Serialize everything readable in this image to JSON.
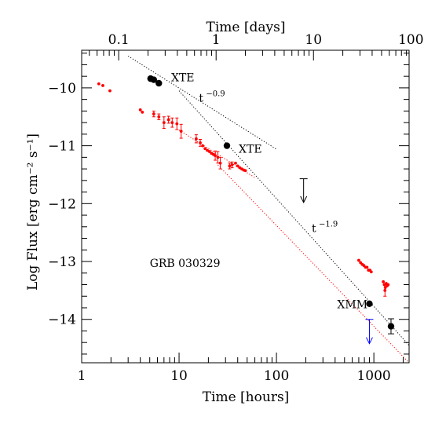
{
  "chart_data": {
    "type": "scatter",
    "title": "",
    "xlabel": "Time [hours]",
    "x2label": "Time [days]",
    "ylabel": "Log Flux [erg cm⁻² s⁻¹]",
    "xscale": "log",
    "xlim": [
      1,
      2300
    ],
    "ylim": [
      -14.75,
      -9.35
    ],
    "x_ticks": [
      1,
      10,
      100,
      1000
    ],
    "x_tick_labels": [
      "1",
      "10",
      "100",
      "1000"
    ],
    "x2_ticks_days": [
      0.1,
      1,
      10,
      100
    ],
    "x2_tick_labels": [
      "0.1",
      "1",
      "10",
      "100"
    ],
    "y_ticks": [
      -10,
      -11,
      -12,
      -13,
      -14
    ],
    "y_tick_labels": [
      "−10",
      "−11",
      "−12",
      "−13",
      "−14"
    ],
    "grid": false,
    "series": [
      {
        "name": "",
        "color": "#ff0000",
        "marker": "small-dot",
        "points": [
          {
            "x": 1.5,
            "y": -9.93
          },
          {
            "x": 1.65,
            "y": -9.96
          },
          {
            "x": 1.95,
            "y": -10.05
          },
          {
            "x": 4.0,
            "y": -10.38
          },
          {
            "x": 4.2,
            "y": -10.42
          },
          {
            "x": 5.5,
            "y": -10.45,
            "err": 0.05
          },
          {
            "x": 6.2,
            "y": -10.5,
            "err": 0.05
          },
          {
            "x": 7.0,
            "y": -10.6,
            "err": 0.1
          },
          {
            "x": 7.8,
            "y": -10.55,
            "err": 0.06
          },
          {
            "x": 8.5,
            "y": -10.6,
            "err": 0.08
          },
          {
            "x": 9.5,
            "y": -10.62,
            "err": 0.1
          },
          {
            "x": 10.5,
            "y": -10.75,
            "err": 0.12
          },
          {
            "x": 15.0,
            "y": -10.88,
            "err": 0.07
          },
          {
            "x": 16.5,
            "y": -10.95,
            "err": 0.06
          },
          {
            "x": 17.5,
            "y": -11.0
          },
          {
            "x": 18.5,
            "y": -11.05
          },
          {
            "x": 19.5,
            "y": -11.08
          },
          {
            "x": 20.5,
            "y": -11.1
          },
          {
            "x": 21.5,
            "y": -11.13
          },
          {
            "x": 22.5,
            "y": -11.15
          },
          {
            "x": 23.5,
            "y": -11.17,
            "err": 0.08
          },
          {
            "x": 25.0,
            "y": -11.2,
            "err": 0.1
          },
          {
            "x": 26.5,
            "y": -11.3,
            "err": 0.1
          },
          {
            "x": 33.0,
            "y": -11.35,
            "err": 0.05
          },
          {
            "x": 35.0,
            "y": -11.33,
            "err": 0.05
          },
          {
            "x": 38.0,
            "y": -11.3
          },
          {
            "x": 40.0,
            "y": -11.35
          },
          {
            "x": 42.0,
            "y": -11.38
          },
          {
            "x": 44.0,
            "y": -11.4
          },
          {
            "x": 46.0,
            "y": -11.42
          },
          {
            "x": 48.0,
            "y": -11.43
          },
          {
            "x": 700,
            "y": -12.98
          },
          {
            "x": 730,
            "y": -13.02
          },
          {
            "x": 760,
            "y": -13.05
          },
          {
            "x": 790,
            "y": -13.07
          },
          {
            "x": 820,
            "y": -13.1
          },
          {
            "x": 850,
            "y": -13.1
          },
          {
            "x": 880,
            "y": -13.15
          },
          {
            "x": 910,
            "y": -13.15
          },
          {
            "x": 940,
            "y": -13.18
          },
          {
            "x": 1250,
            "y": -13.35
          },
          {
            "x": 1280,
            "y": -13.4
          },
          {
            "x": 1310,
            "y": -13.45
          },
          {
            "x": 1340,
            "y": -13.38
          },
          {
            "x": 1370,
            "y": -13.42
          },
          {
            "x": 1400,
            "y": -13.4
          },
          {
            "x": 1300,
            "y": -13.5,
            "err": 0.1
          }
        ]
      },
      {
        "name": "",
        "color": "#000000",
        "marker": "big-dot",
        "points": [
          {
            "x": 5.1,
            "y": -9.84
          },
          {
            "x": 5.5,
            "y": -9.86
          },
          {
            "x": 6.2,
            "y": -9.92
          },
          {
            "x": 31.0,
            "y": -11.0
          },
          {
            "x": 900,
            "y": -13.73
          },
          {
            "x": 1500,
            "y": -14.12,
            "err": 0.13
          }
        ]
      }
    ],
    "upper_limits": [
      {
        "x": 190,
        "y": -11.57,
        "y_to": -11.98,
        "color": "#000000"
      },
      {
        "x": 900,
        "y": -14.0,
        "y_to": -14.42,
        "color": "#0000ff"
      }
    ],
    "fits": [
      {
        "color": "#000000",
        "style": "dotted",
        "x": [
          3.0,
          100
        ],
        "y": [
          -9.45,
          -11.06
        ]
      },
      {
        "color": "#000000",
        "style": "dotted",
        "x": [
          10,
          2300
        ],
        "y": [
          -10.05,
          -14.45
        ]
      },
      {
        "color": "#ff0000",
        "style": "dotted",
        "x": [
          10,
          60
        ],
        "y": [
          -10.73,
          -11.55
        ]
      },
      {
        "color": "#ff0000",
        "style": "dotted",
        "x": [
          25,
          2300
        ],
        "y": [
          -11.33,
          -15.2
        ]
      }
    ],
    "annotations": [
      {
        "text": "XTE",
        "x": 8.3,
        "y": -9.82
      },
      {
        "text": "XTE",
        "x": 41,
        "y": -11.05
      },
      {
        "text": "XMM",
        "x": 420,
        "y": -13.74
      },
      {
        "text": "GRB 030329",
        "x": 5.0,
        "y": -13.03
      }
    ],
    "slope_labels": [
      {
        "base": "t",
        "exp": "−0.9",
        "x": 16,
        "y": -10.17
      },
      {
        "base": "t",
        "exp": "−1.9",
        "x": 230,
        "y": -12.42
      }
    ]
  }
}
